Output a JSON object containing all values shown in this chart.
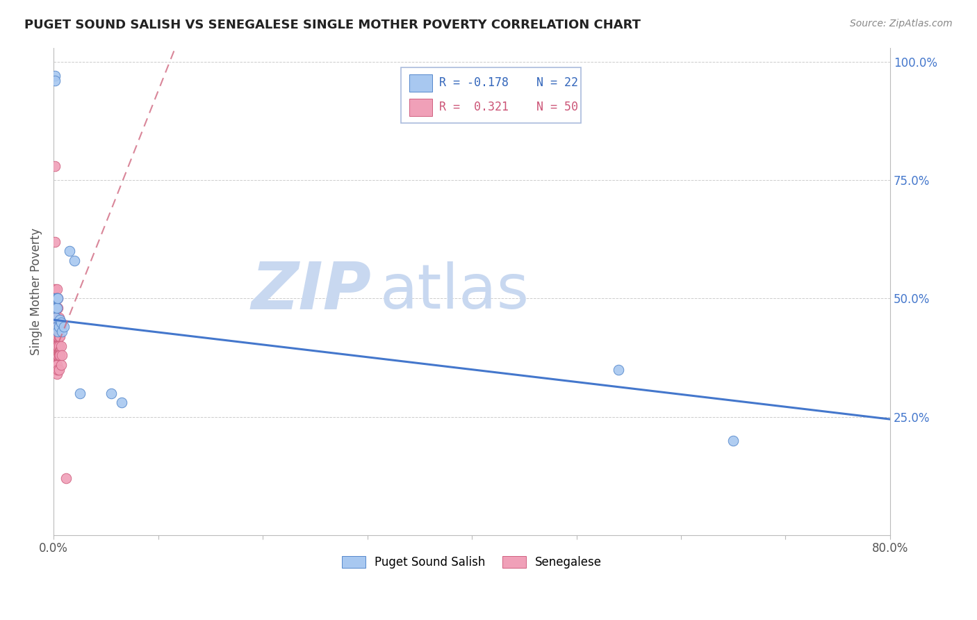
{
  "title": "PUGET SOUND SALISH VS SENEGALESE SINGLE MOTHER POVERTY CORRELATION CHART",
  "source": "Source: ZipAtlas.com",
  "ylabel": "Single Mother Poverty",
  "blue_color": "#A8C8F0",
  "pink_color": "#F0A0B8",
  "blue_edge_color": "#5588CC",
  "pink_edge_color": "#D06080",
  "blue_line_color": "#4477CC",
  "pink_line_color": "#D06880",
  "watermark_color": "#C8D8F0",
  "blue_points_x": [
    0.001,
    0.001,
    0.002,
    0.002,
    0.002,
    0.003,
    0.003,
    0.003,
    0.004,
    0.004,
    0.005,
    0.006,
    0.007,
    0.008,
    0.01,
    0.015,
    0.02,
    0.025,
    0.055,
    0.065,
    0.54,
    0.65
  ],
  "blue_points_y": [
    0.97,
    0.96,
    0.5,
    0.48,
    0.46,
    0.5,
    0.48,
    0.44,
    0.5,
    0.43,
    0.44,
    0.455,
    0.45,
    0.43,
    0.44,
    0.6,
    0.58,
    0.3,
    0.3,
    0.28,
    0.35,
    0.2
  ],
  "pink_points_x": [
    0.001,
    0.001,
    0.001,
    0.001,
    0.001,
    0.001,
    0.001,
    0.001,
    0.001,
    0.001,
    0.002,
    0.002,
    0.002,
    0.002,
    0.002,
    0.002,
    0.002,
    0.002,
    0.002,
    0.003,
    0.003,
    0.003,
    0.003,
    0.003,
    0.003,
    0.003,
    0.003,
    0.003,
    0.003,
    0.004,
    0.004,
    0.004,
    0.004,
    0.004,
    0.004,
    0.004,
    0.005,
    0.005,
    0.005,
    0.005,
    0.005,
    0.005,
    0.006,
    0.006,
    0.006,
    0.007,
    0.007,
    0.007,
    0.008,
    0.012
  ],
  "pink_points_y": [
    0.78,
    0.62,
    0.52,
    0.5,
    0.49,
    0.48,
    0.47,
    0.46,
    0.43,
    0.4,
    0.5,
    0.48,
    0.46,
    0.44,
    0.42,
    0.4,
    0.38,
    0.36,
    0.35,
    0.52,
    0.5,
    0.48,
    0.46,
    0.44,
    0.42,
    0.4,
    0.38,
    0.36,
    0.34,
    0.5,
    0.48,
    0.44,
    0.42,
    0.4,
    0.38,
    0.35,
    0.46,
    0.44,
    0.42,
    0.4,
    0.38,
    0.35,
    0.44,
    0.42,
    0.38,
    0.44,
    0.4,
    0.36,
    0.38,
    0.12
  ],
  "blue_line_x0": 0.0,
  "blue_line_y0": 0.455,
  "blue_line_x1": 0.8,
  "blue_line_y1": 0.245,
  "pink_line_x0": 0.0,
  "pink_line_y0": 0.38,
  "pink_line_x1": 0.12,
  "pink_line_y1": 1.05,
  "xlim": [
    0.0,
    0.8
  ],
  "ylim": [
    0.0,
    1.03
  ]
}
